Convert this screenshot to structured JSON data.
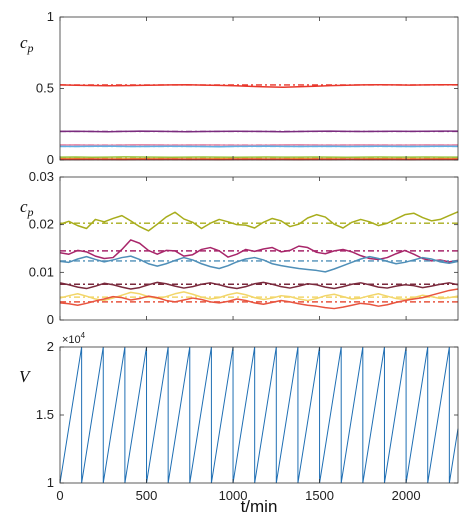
{
  "chart_data": [
    {
      "type": "line",
      "panel": "top",
      "ylabel_main": "c",
      "ylabel_sub": "p",
      "xlim": [
        0,
        2300
      ],
      "ylim": [
        0,
        1
      ],
      "yticks": [
        0,
        0.5,
        1
      ],
      "ytick_labels": [
        "0",
        "0.5",
        "1"
      ],
      "series": [
        {
          "color": "#e8372b",
          "ref": 0.525,
          "values": [
            0.525,
            0.523,
            0.521,
            0.519,
            0.52,
            0.522,
            0.524,
            0.525,
            0.526,
            0.524,
            0.522,
            0.519,
            0.515,
            0.511,
            0.509,
            0.512,
            0.516,
            0.52,
            0.523,
            0.525,
            0.526,
            0.525,
            0.524,
            0.525,
            0.526,
            0.526
          ]
        },
        {
          "color": "#7a2b7e",
          "ref": 0.2,
          "values": [
            0.2,
            0.201,
            0.199,
            0.198,
            0.2,
            0.202,
            0.201,
            0.199,
            0.198,
            0.199,
            0.2,
            0.201,
            0.2,
            0.199,
            0.198,
            0.199,
            0.201,
            0.202,
            0.2,
            0.199,
            0.2,
            0.201,
            0.2,
            0.201,
            0.202,
            0.202
          ]
        },
        {
          "color": "#e88aa8",
          "ref": 0.105,
          "values": [
            0.105,
            0.106,
            0.104,
            0.103,
            0.105,
            0.107,
            0.106,
            0.104,
            0.105,
            0.106,
            0.105,
            0.104,
            0.103,
            0.104,
            0.106,
            0.107,
            0.105,
            0.104,
            0.105,
            0.106,
            0.105,
            0.104,
            0.105,
            0.106,
            0.105,
            0.105
          ]
        },
        {
          "color": "#5fb0e4",
          "ref": 0.095,
          "values": [
            0.095,
            0.094,
            0.096,
            0.097,
            0.095,
            0.094,
            0.095,
            0.096,
            0.095,
            0.094,
            0.093,
            0.095,
            0.096,
            0.097,
            0.095,
            0.094,
            0.095,
            0.096,
            0.094,
            0.095,
            0.096,
            0.095,
            0.094,
            0.095,
            0.096,
            0.095
          ]
        },
        {
          "color": "#9bbf3a",
          "ref": 0.02,
          "values": [
            0.02,
            0.021,
            0.019,
            0.02,
            0.022,
            0.021,
            0.02,
            0.019,
            0.02,
            0.021,
            0.02,
            0.019,
            0.02,
            0.021,
            0.02,
            0.02,
            0.021,
            0.02,
            0.019,
            0.02,
            0.021,
            0.02,
            0.02,
            0.021,
            0.02,
            0.02
          ]
        },
        {
          "color": "#f0a030",
          "ref": 0.008,
          "values": [
            0.008,
            0.009,
            0.008,
            0.007,
            0.008,
            0.009,
            0.008,
            0.008,
            0.007,
            0.008,
            0.009,
            0.008,
            0.008,
            0.007,
            0.008,
            0.009,
            0.008,
            0.008,
            0.007,
            0.008,
            0.009,
            0.008,
            0.008,
            0.008,
            0.009,
            0.008
          ]
        },
        {
          "color": "#e8372b",
          "ref": 0.004,
          "values": [
            0.004,
            0.004,
            0.005,
            0.004,
            0.003,
            0.004,
            0.004,
            0.005,
            0.004,
            0.004,
            0.003,
            0.004,
            0.005,
            0.004,
            0.004,
            0.003,
            0.004,
            0.004,
            0.005,
            0.004,
            0.004,
            0.004,
            0.003,
            0.004,
            0.004,
            0.004
          ]
        }
      ]
    },
    {
      "type": "line",
      "panel": "middle",
      "ylabel_main": "c",
      "ylabel_sub": "p",
      "xlim": [
        0,
        2300
      ],
      "ylim": [
        0,
        0.03
      ],
      "yticks": [
        0,
        0.01,
        0.02,
        0.03
      ],
      "ytick_labels": [
        "0",
        "0.01",
        "0.02",
        "0.03"
      ],
      "series": [
        {
          "color": "#a8ad1c",
          "ref": 0.0203,
          "values": [
            0.0201,
            0.0207,
            0.0198,
            0.0192,
            0.0211,
            0.0206,
            0.0213,
            0.0219,
            0.0208,
            0.0196,
            0.0187,
            0.0201,
            0.0216,
            0.0226,
            0.0212,
            0.0205,
            0.0192,
            0.0203,
            0.0211,
            0.0206,
            0.02,
            0.0199,
            0.0193,
            0.0205,
            0.0213,
            0.0208,
            0.0196,
            0.0201,
            0.0214,
            0.0221,
            0.0216,
            0.0201,
            0.0193,
            0.0205,
            0.0211,
            0.0206,
            0.0198,
            0.0203,
            0.0212,
            0.0221,
            0.0224,
            0.0215,
            0.0208,
            0.0211,
            0.0219,
            0.0227
          ]
        },
        {
          "color": "#a8266a",
          "ref": 0.0145,
          "values": [
            0.0141,
            0.0138,
            0.0146,
            0.0143,
            0.0134,
            0.0129,
            0.0131,
            0.0148,
            0.0168,
            0.0161,
            0.0146,
            0.0138,
            0.0146,
            0.0145,
            0.0134,
            0.0137,
            0.0148,
            0.0152,
            0.0145,
            0.0132,
            0.0138,
            0.0148,
            0.0144,
            0.0149,
            0.0152,
            0.0143,
            0.0146,
            0.0155,
            0.0152,
            0.0142,
            0.0139,
            0.0145,
            0.0148,
            0.0143,
            0.0135,
            0.0129,
            0.0127,
            0.0131,
            0.0139,
            0.0146,
            0.0138,
            0.0129,
            0.0124,
            0.0126,
            0.0122,
            0.0125
          ]
        },
        {
          "color": "#4f8fb8",
          "ref": 0.0124,
          "values": [
            0.0123,
            0.0121,
            0.0128,
            0.0133,
            0.0127,
            0.0122,
            0.0126,
            0.0131,
            0.0134,
            0.0127,
            0.0118,
            0.0113,
            0.0118,
            0.0125,
            0.0131,
            0.0126,
            0.0118,
            0.0112,
            0.0108,
            0.0114,
            0.0122,
            0.0128,
            0.0131,
            0.0126,
            0.0118,
            0.0114,
            0.0111,
            0.0108,
            0.0106,
            0.0104,
            0.0101,
            0.0107,
            0.0114,
            0.0121,
            0.0128,
            0.0133,
            0.0129,
            0.0123,
            0.0118,
            0.0121,
            0.0126,
            0.0131,
            0.0128,
            0.0122,
            0.0119,
            0.0123
          ]
        },
        {
          "color": "#7a2a3d",
          "ref": 0.0075,
          "values": [
            0.0078,
            0.0074,
            0.0069,
            0.0066,
            0.0071,
            0.0077,
            0.0074,
            0.0069,
            0.0065,
            0.0068,
            0.0074,
            0.0079,
            0.0076,
            0.0071,
            0.0067,
            0.007,
            0.0075,
            0.0078,
            0.0074,
            0.0069,
            0.0066,
            0.007,
            0.0076,
            0.0079,
            0.0075,
            0.007,
            0.0067,
            0.0071,
            0.0076,
            0.0074,
            0.0069,
            0.0066,
            0.007,
            0.0075,
            0.0078,
            0.0074,
            0.0069,
            0.0067,
            0.0071,
            0.0074,
            0.0072,
            0.0068,
            0.0071,
            0.0075,
            0.0078,
            0.0074
          ]
        },
        {
          "color": "#f2d66a",
          "ref": 0.0048,
          "values": [
            0.0046,
            0.0051,
            0.0055,
            0.005,
            0.0044,
            0.0041,
            0.0046,
            0.0052,
            0.0058,
            0.0055,
            0.0049,
            0.0045,
            0.0049,
            0.0055,
            0.0059,
            0.0054,
            0.0048,
            0.0044,
            0.0047,
            0.0053,
            0.0057,
            0.0053,
            0.0047,
            0.0043,
            0.0046,
            0.0051,
            0.0049,
            0.0044,
            0.0041,
            0.0045,
            0.0051,
            0.0054,
            0.0049,
            0.0044,
            0.0046,
            0.0051,
            0.0055,
            0.005,
            0.0045,
            0.0043,
            0.0047,
            0.0052,
            0.0049,
            0.0045,
            0.0047,
            0.005
          ]
        },
        {
          "color": "#e8543f",
          "ref": 0.0038,
          "values": [
            0.0036,
            0.0034,
            0.0031,
            0.0035,
            0.004,
            0.0044,
            0.0049,
            0.0047,
            0.0042,
            0.0045,
            0.005,
            0.0047,
            0.0041,
            0.0038,
            0.0042,
            0.0046,
            0.0043,
            0.0038,
            0.0036,
            0.0039,
            0.0044,
            0.0041,
            0.0036,
            0.0033,
            0.0037,
            0.0041,
            0.0038,
            0.0034,
            0.0031,
            0.0029,
            0.0026,
            0.0024,
            0.0027,
            0.0031,
            0.0035,
            0.0033,
            0.0029,
            0.0032,
            0.0037,
            0.0041,
            0.0044,
            0.0047,
            0.0052,
            0.0057,
            0.0062,
            0.0065
          ]
        }
      ]
    },
    {
      "type": "line",
      "panel": "bottom",
      "ylabel": "V",
      "xlabel": "t/min",
      "xlim": [
        0,
        2300
      ],
      "ylim": [
        10000,
        20000
      ],
      "yticks": [
        10000,
        15000,
        20000
      ],
      "ytick_labels": [
        "1",
        "1.5",
        "2"
      ],
      "yexponent": "×10",
      "yexponent_power": "4",
      "xticks": [
        0,
        500,
        1000,
        1500,
        2000
      ],
      "xtick_labels": [
        "0",
        "500",
        "1000",
        "1500",
        "2000"
      ],
      "series": [
        {
          "color": "#1f6fb4",
          "pattern": "sawtooth",
          "period": 125,
          "min": 10000,
          "max": 20000
        }
      ]
    }
  ]
}
